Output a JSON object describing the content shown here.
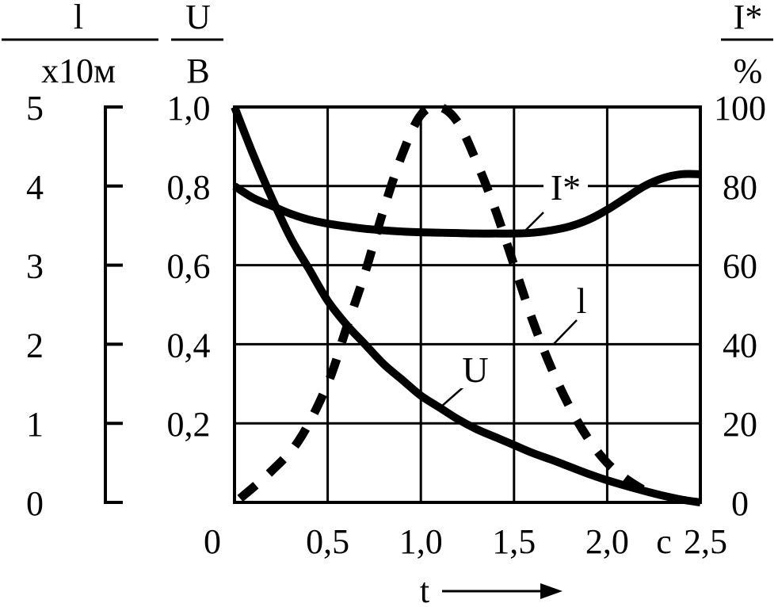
{
  "chart_data": {
    "type": "line",
    "x": {
      "label": "t",
      "unit": "с",
      "range": [
        0,
        2.5
      ],
      "ticks": [
        {
          "value": 0,
          "label": "0"
        },
        {
          "value": 0.5,
          "label": "0,5"
        },
        {
          "value": 1.0,
          "label": "1,0"
        },
        {
          "value": 1.5,
          "label": "1,5"
        },
        {
          "value": 2.0,
          "label": "2,0"
        },
        {
          "value": 2.5,
          "label": "2,5"
        }
      ]
    },
    "axes": {
      "l": {
        "label_top": "l",
        "label_bottom": "x10м",
        "range": [
          0,
          5
        ],
        "ticks": [
          {
            "value": 0,
            "label": "0"
          },
          {
            "value": 1,
            "label": "1"
          },
          {
            "value": 2,
            "label": "2"
          },
          {
            "value": 3,
            "label": "3"
          },
          {
            "value": 4,
            "label": "4"
          },
          {
            "value": 5,
            "label": "5"
          }
        ]
      },
      "U": {
        "label_top": "U",
        "label_bottom": "В",
        "range": [
          0,
          1.0
        ],
        "ticks": [
          {
            "value": 0.2,
            "label": "0,2"
          },
          {
            "value": 0.4,
            "label": "0,4"
          },
          {
            "value": 0.6,
            "label": "0,6"
          },
          {
            "value": 0.8,
            "label": "0,8"
          },
          {
            "value": 1.0,
            "label": "1,0"
          }
        ]
      },
      "I": {
        "label_top": "I*",
        "label_bottom": "%",
        "range": [
          0,
          100
        ],
        "ticks": [
          {
            "value": 0,
            "label": "0"
          },
          {
            "value": 20,
            "label": "20"
          },
          {
            "value": 40,
            "label": "40"
          },
          {
            "value": 60,
            "label": "60"
          },
          {
            "value": 80,
            "label": "80"
          },
          {
            "value": 100,
            "label": "100"
          }
        ]
      }
    },
    "grid": true,
    "series": [
      {
        "name": "U",
        "axis": "U",
        "style": "solid",
        "x": [
          0,
          0.1,
          0.2,
          0.3,
          0.4,
          0.5,
          0.6,
          0.7,
          0.8,
          0.9,
          1.0,
          1.1,
          1.2,
          1.3,
          1.4,
          1.5,
          1.6,
          1.7,
          1.8,
          1.9,
          2.0,
          2.1,
          2.2,
          2.3,
          2.4,
          2.5
        ],
        "values": [
          1.0,
          0.88,
          0.77,
          0.67,
          0.59,
          0.51,
          0.45,
          0.4,
          0.35,
          0.31,
          0.27,
          0.24,
          0.21,
          0.185,
          0.165,
          0.145,
          0.125,
          0.108,
          0.09,
          0.072,
          0.056,
          0.042,
          0.029,
          0.017,
          0.007,
          0.0
        ]
      },
      {
        "name": "I*",
        "axis": "I",
        "style": "solid",
        "x": [
          0,
          0.1,
          0.2,
          0.3,
          0.4,
          0.5,
          0.6,
          0.7,
          0.8,
          0.9,
          1.0,
          1.1,
          1.2,
          1.3,
          1.4,
          1.5,
          1.6,
          1.7,
          1.8,
          1.9,
          2.0,
          2.1,
          2.2,
          2.3,
          2.4,
          2.5
        ],
        "values": [
          80,
          77,
          75,
          73,
          71.5,
          70.5,
          69.8,
          69.2,
          68.8,
          68.5,
          68.3,
          68.2,
          68.1,
          68.0,
          68.0,
          68.0,
          68.2,
          68.8,
          69.8,
          71.5,
          74,
          77,
          80,
          82,
          83,
          83
        ]
      },
      {
        "name": "l",
        "axis": "l",
        "style": "dashed",
        "x": [
          0.03,
          0.2,
          0.35,
          0.5,
          0.6,
          0.7,
          0.8,
          0.9,
          1.0,
          1.1,
          1.2,
          1.3,
          1.4,
          1.5,
          1.6,
          1.7,
          1.8,
          1.9,
          2.0,
          2.1,
          2.2
        ],
        "values": [
          0.05,
          0.4,
          0.8,
          1.5,
          2.2,
          2.9,
          3.7,
          4.4,
          4.9,
          5.0,
          4.8,
          4.3,
          3.7,
          3.0,
          2.3,
          1.7,
          1.2,
          0.8,
          0.5,
          0.3,
          0.15
        ]
      }
    ],
    "annotations": [
      {
        "text": "I*",
        "series": "I*"
      },
      {
        "text": "l",
        "series": "l"
      },
      {
        "text": "U",
        "series": "U"
      }
    ]
  }
}
